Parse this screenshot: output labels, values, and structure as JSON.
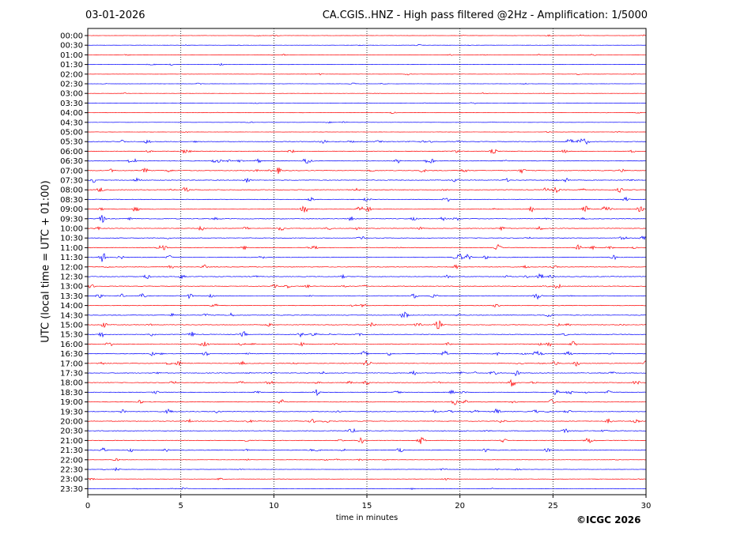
{
  "header": {
    "date": "03-01-2026",
    "title": "CA.CGIS..HNZ - High pass filtered @2Hz - Amplification: 1/5000"
  },
  "footer": {
    "copyright": "©ICGC 2026"
  },
  "chart_data": {
    "type": "line",
    "xlabel": "time in minutes",
    "ylabel": "UTC (local time = UTC + 01:00)",
    "xlim": [
      0,
      30
    ],
    "x_ticks": [
      "0",
      "5",
      "10",
      "15",
      "20",
      "25",
      "30"
    ],
    "y_tick_labels": [
      "00:00",
      "00:30",
      "01:00",
      "01:30",
      "02:00",
      "02:30",
      "03:00",
      "03:30",
      "04:00",
      "04:30",
      "05:00",
      "05:30",
      "06:00",
      "06:30",
      "07:00",
      "07:30",
      "08:00",
      "08:30",
      "09:00",
      "09:30",
      "10:00",
      "10:30",
      "11:00",
      "11:30",
      "12:00",
      "12:30",
      "13:00",
      "13:30",
      "14:00",
      "14:30",
      "15:00",
      "15:30",
      "16:00",
      "16:30",
      "17:00",
      "17:30",
      "18:00",
      "18:30",
      "19:00",
      "19:30",
      "20:00",
      "20:30",
      "21:00",
      "21:30",
      "22:00",
      "22:30",
      "23:00",
      "23:30"
    ],
    "vertical_grid_minutes": [
      5,
      10,
      15,
      20,
      25
    ],
    "trace_colors": [
      "#ff0000",
      "#0000ff"
    ],
    "frame_color": "#000000",
    "grid_color": "#000000"
  }
}
